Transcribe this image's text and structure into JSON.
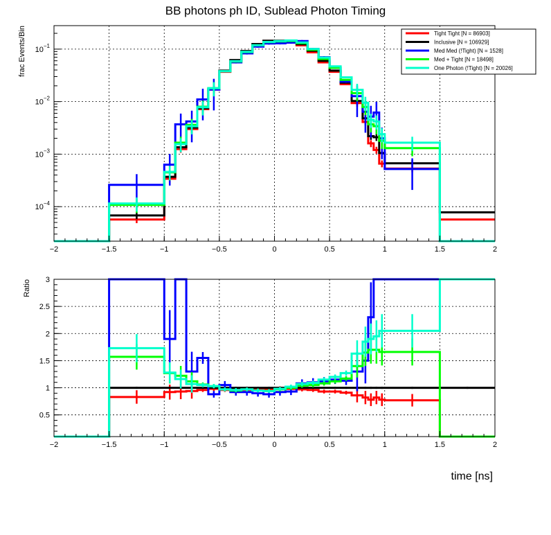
{
  "chart_data": [
    {
      "type": "step-histogram",
      "title": "BB photons ph ID, Sublead Photon Timing",
      "ylabel": "frac Events/Bin",
      "xlabel": "",
      "yscale": "log",
      "xlim": [
        -2,
        2
      ],
      "ylim": [
        2.2e-05,
        0.28
      ],
      "x_ticks": [
        "−2",
        "−1.5",
        "−1",
        "−0.5",
        "0",
        "0.5",
        "1",
        "1.5",
        "2"
      ],
      "y_ticks": [
        {
          "base": "10",
          "exp": "−4",
          "value": 0.0001
        },
        {
          "base": "10",
          "exp": "−3",
          "value": 0.001
        },
        {
          "base": "10",
          "exp": "−2",
          "value": 0.01
        },
        {
          "base": "10",
          "exp": "−1",
          "value": 0.1
        }
      ],
      "bin_edges": [
        -2,
        -1.5,
        -1,
        -0.9,
        -0.8,
        -0.7,
        -0.6,
        -0.5,
        -0.4,
        -0.3,
        -0.2,
        -0.1,
        0,
        0.1,
        0.2,
        0.3,
        0.4,
        0.5,
        0.6,
        0.7,
        0.8,
        0.85,
        0.9,
        0.95,
        1,
        1.5,
        2
      ],
      "series": [
        {
          "name": "Tight Tight [N = 86903]",
          "color": "#ff0000",
          "values": [
            1.5e-05,
            5.7e-05,
            0.00034,
            0.00125,
            0.003,
            0.0072,
            0.017,
            0.037,
            0.06,
            0.088,
            0.12,
            0.14,
            0.143,
            0.138,
            0.118,
            0.087,
            0.056,
            0.037,
            0.0215,
            0.0094,
            0.0041,
            0.0016,
            0.0012,
            0.00066,
            0.00053,
            5.7e-05
          ]
        },
        {
          "name": "Inclusive [N = 106929]",
          "color": "#000000",
          "values": [
            1.5e-05,
            6.8e-05,
            0.00037,
            0.00135,
            0.0032,
            0.0075,
            0.0175,
            0.039,
            0.062,
            0.092,
            0.125,
            0.145,
            0.145,
            0.143,
            0.124,
            0.093,
            0.06,
            0.039,
            0.023,
            0.0103,
            0.0048,
            0.0022,
            0.0021,
            0.00105,
            0.00067,
            7.8e-05
          ]
        },
        {
          "name": "Med Med (!Tight) [N = 1528]",
          "color": "#0000ff",
          "values": [
            1.5e-05,
            0.00026,
            0.00063,
            0.0037,
            0.0042,
            0.011,
            0.017,
            0.038,
            0.056,
            0.083,
            0.112,
            0.128,
            0.129,
            0.133,
            0.142,
            0.101,
            0.07,
            0.044,
            0.024,
            0.0127,
            0.0064,
            0.0052,
            0.0062,
            0.002,
            0.00052,
            1.5e-05
          ]
        },
        {
          "name": "Med + Tight [N = 18498]",
          "color": "#00ff00",
          "values": [
            1.5e-05,
            0.000108,
            0.00045,
            0.00165,
            0.0036,
            0.008,
            0.018,
            0.038,
            0.058,
            0.088,
            0.118,
            0.136,
            0.14,
            0.143,
            0.13,
            0.097,
            0.065,
            0.044,
            0.026,
            0.0145,
            0.0079,
            0.0037,
            0.0034,
            0.0018,
            0.0013,
            1.5e-05
          ]
        },
        {
          "name": "One Photon (!Tight) [N = 20026]",
          "color": "#00ffcc",
          "values": [
            1.5e-05,
            0.000115,
            0.00046,
            0.00155,
            0.0034,
            0.0078,
            0.018,
            0.038,
            0.059,
            0.089,
            0.119,
            0.137,
            0.142,
            0.146,
            0.134,
            0.101,
            0.069,
            0.047,
            0.029,
            0.0168,
            0.0095,
            0.0045,
            0.0042,
            0.0024,
            0.00165,
            1.5e-05
          ]
        }
      ],
      "legend": {
        "position": "top-right"
      }
    },
    {
      "type": "step-histogram",
      "title": "",
      "ylabel": "Ratio",
      "xlabel": "time [ns]",
      "yscale": "linear",
      "xlim": [
        -2,
        2
      ],
      "ylim": [
        0.1,
        3.0
      ],
      "x_ticks": [
        "−2",
        "−1.5",
        "−1",
        "−0.5",
        "0",
        "0.5",
        "1",
        "1.5",
        "2"
      ],
      "y_ticks": [
        "0.5",
        "1",
        "1.5",
        "2",
        "2.5",
        "3"
      ],
      "y_tick_values": [
        0.5,
        1,
        1.5,
        2,
        2.5,
        3
      ],
      "bin_edges": [
        -2,
        -1.5,
        -1,
        -0.9,
        -0.8,
        -0.7,
        -0.6,
        -0.5,
        -0.4,
        -0.3,
        -0.2,
        -0.1,
        0,
        0.1,
        0.2,
        0.3,
        0.4,
        0.5,
        0.6,
        0.7,
        0.8,
        0.85,
        0.9,
        0.95,
        1,
        1.5,
        2
      ],
      "series": [
        {
          "name": "Tight Tight",
          "color": "#ff0000",
          "values": [
            0.1,
            0.83,
            0.92,
            0.93,
            0.94,
            0.96,
            0.98,
            0.96,
            0.97,
            0.96,
            0.97,
            0.97,
            0.99,
            0.98,
            0.97,
            0.96,
            0.93,
            0.93,
            0.91,
            0.86,
            0.82,
            0.78,
            0.82,
            0.78,
            0.77,
            0.1
          ]
        },
        {
          "name": "Inclusive",
          "color": "#000000",
          "values": [
            0.1,
            1.0,
            1.0,
            1.0,
            1.0,
            1.0,
            1.0,
            1.0,
            1.0,
            1.0,
            1.0,
            1.0,
            1.0,
            1.0,
            1.0,
            1.0,
            1.0,
            1.0,
            1.0,
            1.0,
            1.0,
            1.0,
            1.0,
            1.0,
            1.0,
            1.0
          ]
        },
        {
          "name": "Med Med (!Tight)",
          "color": "#0000ff",
          "values": [
            0.1,
            3.0,
            1.9,
            3.0,
            1.3,
            1.55,
            0.88,
            1.05,
            0.92,
            0.92,
            0.9,
            0.88,
            0.92,
            0.93,
            1.08,
            1.1,
            1.12,
            1.15,
            1.13,
            1.3,
            1.5,
            2.3,
            3.0,
            3.0,
            3.0,
            3.0
          ]
        },
        {
          "name": "Med + Tight",
          "color": "#00ff00",
          "values": [
            0.1,
            1.57,
            1.27,
            1.22,
            1.12,
            1.06,
            1.03,
            0.97,
            0.95,
            0.97,
            0.95,
            0.94,
            0.97,
            1.0,
            1.04,
            1.05,
            1.08,
            1.12,
            1.17,
            1.4,
            1.65,
            1.7,
            1.7,
            1.66,
            1.66,
            0.1
          ]
        },
        {
          "name": "One Photon (!Tight)",
          "color": "#00ffcc",
          "values": [
            0.1,
            1.73,
            1.28,
            1.16,
            1.07,
            1.05,
            1.03,
            0.97,
            0.96,
            0.97,
            0.95,
            0.94,
            0.98,
            1.02,
            1.07,
            1.09,
            1.15,
            1.2,
            1.27,
            1.63,
            1.85,
            1.9,
            1.95,
            2.05,
            2.05,
            3.0
          ]
        }
      ]
    }
  ]
}
